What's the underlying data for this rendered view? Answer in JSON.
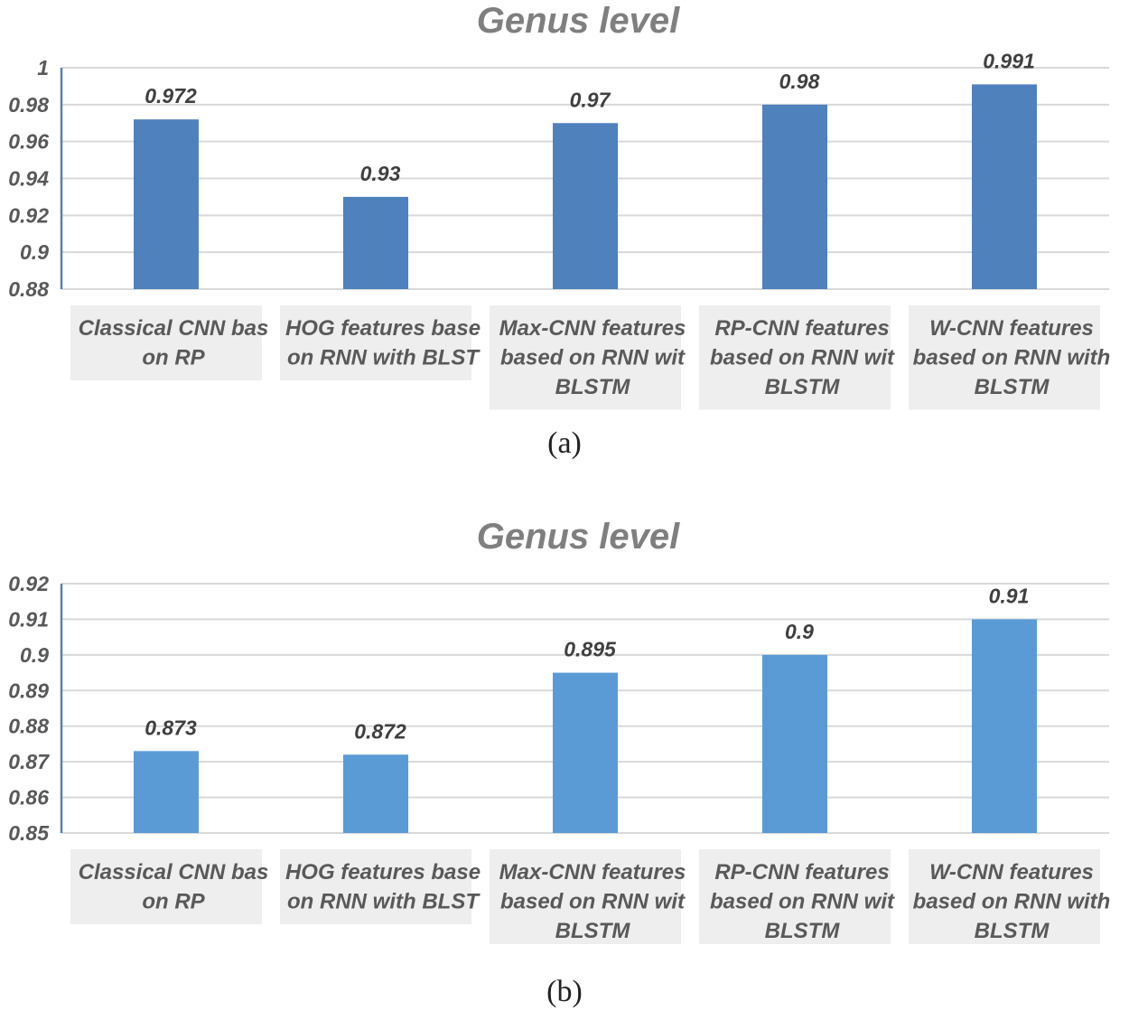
{
  "chart_data": [
    {
      "type": "bar",
      "title": "Genus level",
      "caption": "(a)",
      "categories": [
        [
          "Classical CNN bas",
          "on RP"
        ],
        [
          "HOG features base",
          "on RNN with BLST"
        ],
        [
          "Max-CNN features",
          "based on RNN wit",
          "BLSTM"
        ],
        [
          "RP-CNN features",
          "based on RNN wit",
          "BLSTM"
        ],
        [
          "W-CNN features",
          "based on RNN with",
          "BLSTM"
        ]
      ],
      "values": [
        0.972,
        0.93,
        0.97,
        0.98,
        0.991
      ],
      "data_labels": [
        "0.972",
        "0.93",
        "0.97",
        "0.98",
        "0.991"
      ],
      "ylim": [
        0.88,
        1
      ],
      "yticks": [
        "0.88",
        "0.9",
        "0.92",
        "0.94",
        "0.96",
        "0.98",
        "1"
      ],
      "grid": true,
      "bar_color": "#4f81bd"
    },
    {
      "type": "bar",
      "title": "Genus level",
      "caption": "(b)",
      "categories": [
        [
          "Classical CNN bas",
          "on RP"
        ],
        [
          "HOG features base",
          "on RNN with BLST"
        ],
        [
          "Max-CNN features",
          "based on RNN wit",
          "BLSTM"
        ],
        [
          "RP-CNN features",
          "based on RNN wit",
          "BLSTM"
        ],
        [
          "W-CNN features",
          "based on RNN with",
          "BLSTM"
        ]
      ],
      "values": [
        0.873,
        0.872,
        0.895,
        0.9,
        0.91
      ],
      "data_labels": [
        "0.873",
        "0.872",
        "0.895",
        "0.9",
        "0.91"
      ],
      "ylim": [
        0.85,
        0.92
      ],
      "yticks": [
        "0.85",
        "0.86",
        "0.87",
        "0.88",
        "0.89",
        "0.9",
        "0.91",
        "0.92"
      ],
      "grid": true,
      "bar_color": "#5b9bd5"
    }
  ]
}
